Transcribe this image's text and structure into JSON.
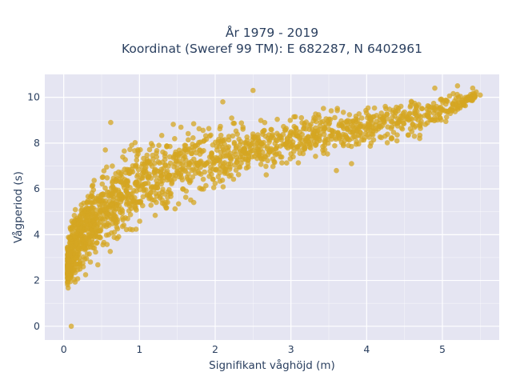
{
  "chart_data": {
    "type": "scatter",
    "title_line1": "År 1979 - 2019",
    "title_line2": "Koordinat (Sweref 99 TM): E 682287, N 6402961",
    "xlabel": "Signifikant våghöjd (m)",
    "ylabel": "Vågperiod (s)",
    "xlim": [
      -0.25,
      5.75
    ],
    "ylim": [
      -0.6,
      11
    ],
    "xticks": [
      0,
      1,
      2,
      3,
      4,
      5
    ],
    "yticks": [
      0,
      2,
      4,
      6,
      8,
      10
    ],
    "xtick_labels": [
      "0",
      "1",
      "2",
      "3",
      "4",
      "5"
    ],
    "ytick_labels": [
      "0",
      "2",
      "4",
      "6",
      "8",
      "10"
    ],
    "grid": true,
    "background": "#e5e5f2",
    "marker_color": "#d4a621",
    "marker_opacity": 0.75,
    "envelope": {
      "x": [
        0.05,
        0.1,
        0.2,
        0.3,
        0.5,
        0.75,
        1.0,
        1.25,
        1.5,
        2.0,
        2.5,
        3.0,
        3.5,
        4.0,
        4.5,
        5.0,
        5.5
      ],
      "y_low": [
        1.4,
        1.3,
        1.7,
        2.0,
        2.6,
        3.2,
        3.8,
        4.3,
        4.7,
        5.5,
        6.1,
        6.7,
        7.1,
        7.5,
        7.9,
        8.6,
        10.0
      ],
      "y_high": [
        3.8,
        5.0,
        6.0,
        6.6,
        7.3,
        8.3,
        8.7,
        9.0,
        9.1,
        9.3,
        9.4,
        9.5,
        9.7,
        9.9,
        10.1,
        10.3,
        10.4
      ]
    },
    "outliers": [
      {
        "x": 0.1,
        "y": 0.0
      },
      {
        "x": 0.62,
        "y": 8.9
      },
      {
        "x": 0.55,
        "y": 7.7
      },
      {
        "x": 2.5,
        "y": 10.3
      },
      {
        "x": 2.1,
        "y": 9.8
      },
      {
        "x": 4.9,
        "y": 10.4
      },
      {
        "x": 5.2,
        "y": 10.5
      },
      {
        "x": 5.4,
        "y": 10.4
      },
      {
        "x": 5.5,
        "y": 10.1
      },
      {
        "x": 4.4,
        "y": 8.1
      },
      {
        "x": 4.7,
        "y": 8.2
      },
      {
        "x": 4.8,
        "y": 9.2
      },
      {
        "x": 3.6,
        "y": 6.8
      },
      {
        "x": 3.8,
        "y": 7.1
      }
    ],
    "n_points": 1800
  }
}
